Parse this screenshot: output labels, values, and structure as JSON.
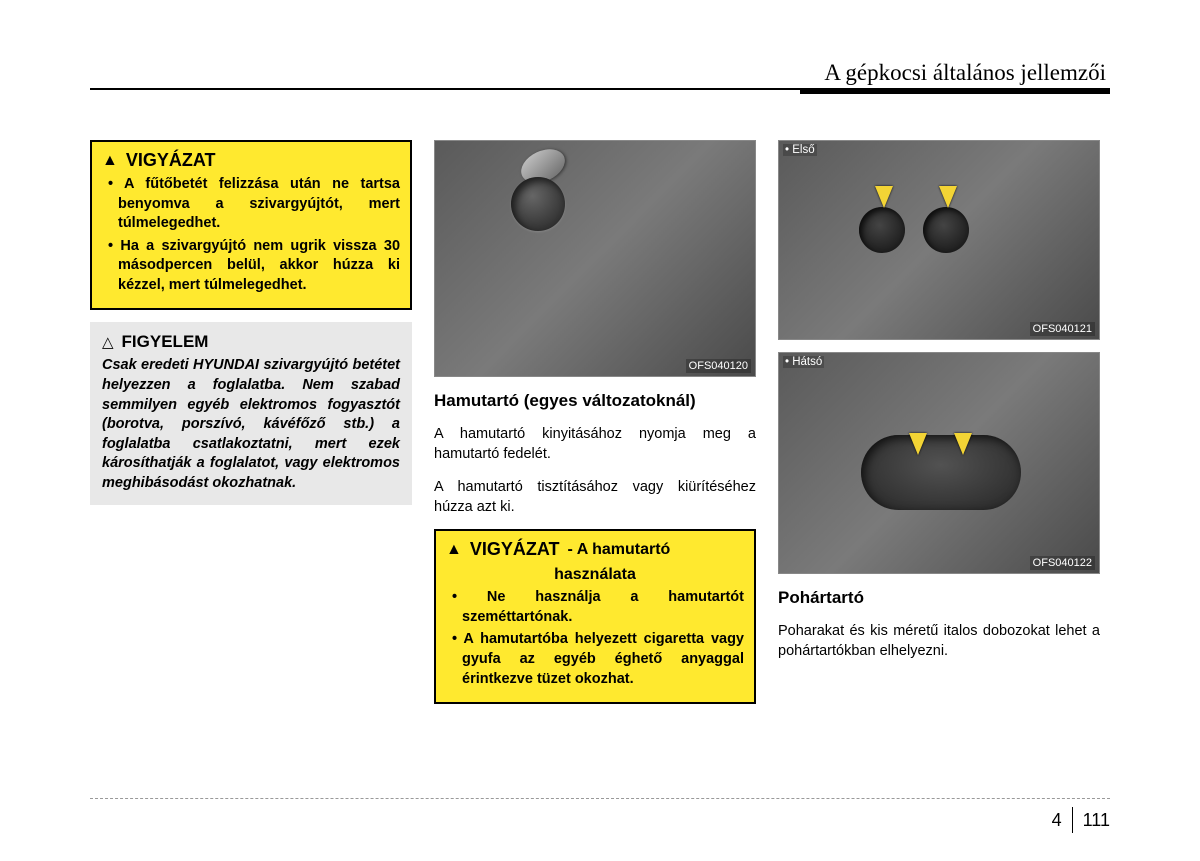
{
  "header": {
    "title": "A gépkocsi általános jellemzői"
  },
  "col1": {
    "caution": {
      "title": "VIGYÁZAT",
      "items": [
        "A fűtőbetét felizzása után ne tartsa benyomva a szivargyújtót, mert túlmelegedhet.",
        "Ha a szivargyújtó nem ugrik vissza 30 másodpercen belül, akkor húzza ki kézzel, mert túlmelegedhet."
      ]
    },
    "notice": {
      "title": "FIGYELEM",
      "text": "Csak eredeti HYUNDAI szivargyújtó betétet helyezzen a foglalatba. Nem szabad semmilyen egyéb elektromos fogyasztót (borotva, porszívó, kávéfőző stb.) a foglalatba csatlakoztatni, mert ezek károsíthatják a foglalatot, vagy elektromos meghibásodást okozhatnak."
    }
  },
  "col2": {
    "image_code": "OFS040120",
    "section_title": "Hamutartó (egyes változatoknál)",
    "para1": "A hamutartó kinyitásához nyomja meg a hamutartó fedelét.",
    "para2": "A hamutartó tisztításához vagy kiürítéséhez húzza azt ki.",
    "caution": {
      "title": "VIGYÁZAT",
      "subtitle_top": "- A hamutartó",
      "subtitle_bottom": "használata",
      "items": [
        "Ne használja a hamutartót szeméttartónak.",
        "A hamutartóba helyezett cigaretta vagy gyufa az egyéb éghető anyaggal érintkezve tüzet okozhat."
      ]
    }
  },
  "col3": {
    "image_top": {
      "label": "• Első",
      "code": "OFS040121"
    },
    "image_bottom": {
      "label": "• Hátsó",
      "code": "OFS040122"
    },
    "section_title": "Pohártartó",
    "para": "Poharakat és kis méretű italos dobozokat lehet a pohártartókban elhelyezni."
  },
  "footer": {
    "chapter": "4",
    "page": "111"
  }
}
